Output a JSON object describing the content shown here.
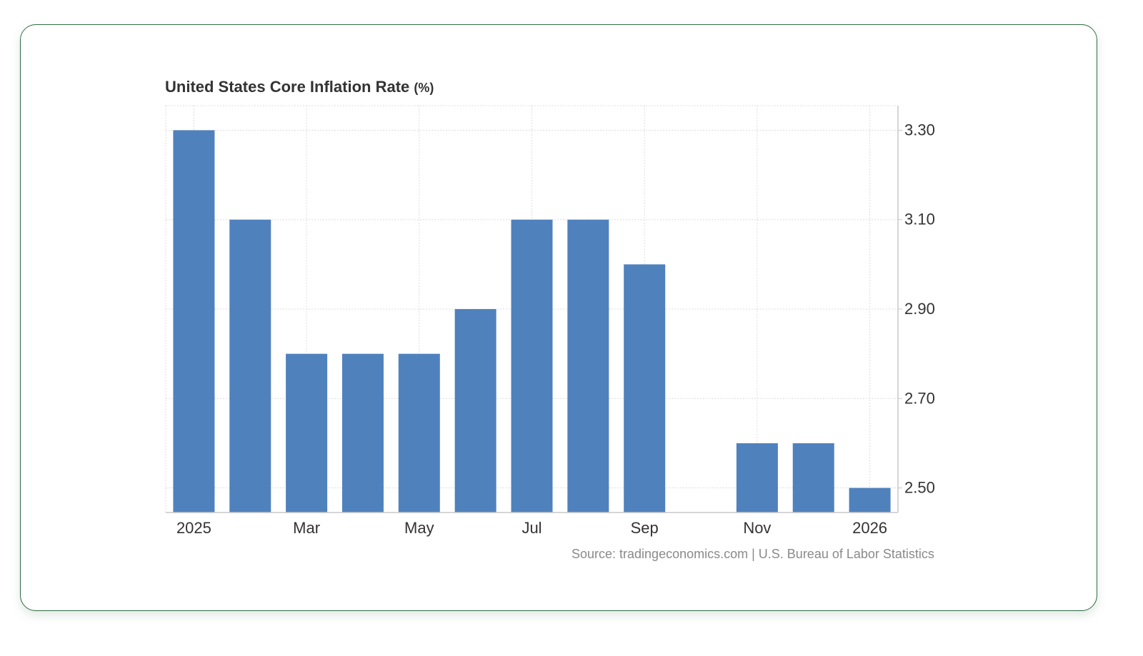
{
  "chart_data": {
    "type": "bar",
    "title": "United States Core Inflation Rate",
    "title_unit": "(%)",
    "source": "Source: tradingeconomics.com | U.S. Bureau of Labor Statistics",
    "x": [
      "2025-01",
      "2025-02",
      "2025-03",
      "2025-04",
      "2025-05",
      "2025-06",
      "2025-07",
      "2025-08",
      "2025-09",
      "2025-10",
      "2025-11",
      "2025-12",
      "2026-01"
    ],
    "values": [
      3.3,
      3.1,
      2.8,
      2.8,
      2.8,
      2.9,
      3.1,
      3.1,
      3.0,
      null,
      2.6,
      2.6,
      2.5
    ],
    "tick_labels": [
      {
        "x": "2025-01",
        "label": "2025"
      },
      {
        "x": "2025-03",
        "label": "Mar"
      },
      {
        "x": "2025-05",
        "label": "May"
      },
      {
        "x": "2025-07",
        "label": "Jul"
      },
      {
        "x": "2025-09",
        "label": "Sep"
      },
      {
        "x": "2025-11",
        "label": "Nov"
      },
      {
        "x": "2026-01",
        "label": "2026"
      }
    ],
    "y_ticks": [
      "3.30",
      "3.10",
      "2.90",
      "2.70",
      "2.50"
    ],
    "ylim": [
      2.445,
      3.355
    ],
    "y_axis_side": "right",
    "grid": true,
    "bar_color": "#4f81bd",
    "grid_color": "#dcdcdc"
  }
}
